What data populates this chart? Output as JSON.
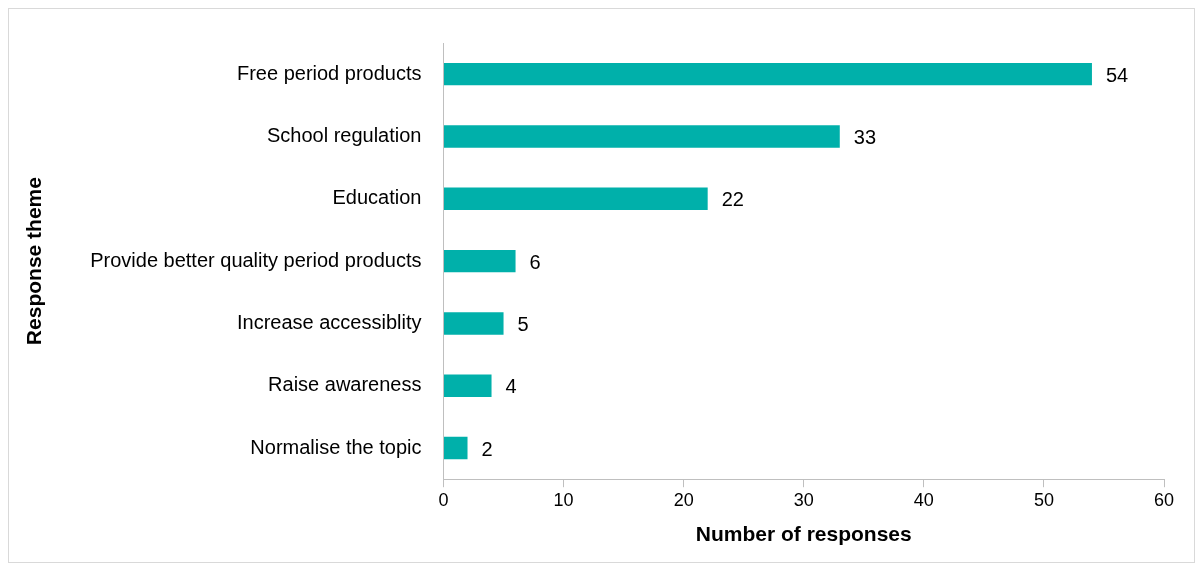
{
  "chart_data": {
    "type": "bar",
    "orientation": "horizontal",
    "categories": [
      "Free period products",
      "School regulation",
      "Education",
      "Provide better quality period products",
      "Increase accessiblity",
      "Raise awareness",
      "Normalise the topic"
    ],
    "values": [
      54,
      33,
      22,
      6,
      5,
      4,
      2
    ],
    "color": "#00b0aa",
    "xlabel": "Number of responses",
    "ylabel": "Response theme",
    "xlim": [
      0,
      60
    ],
    "xticks": [
      0,
      10,
      20,
      30,
      40,
      50,
      60
    ],
    "grid": false,
    "data_labels": true
  }
}
